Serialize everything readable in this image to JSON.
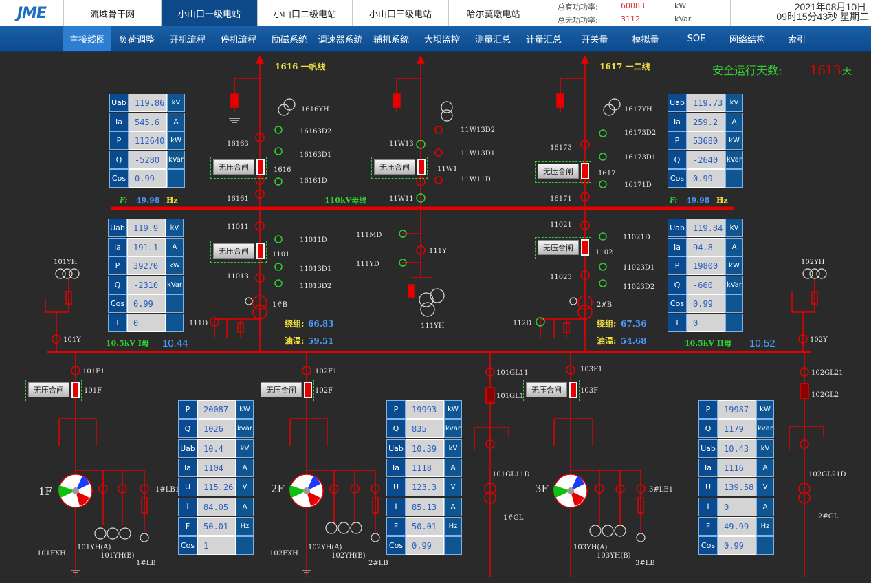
{
  "header": {
    "logo": "JME",
    "tabs": [
      "流域骨干网",
      "小山口一级电站",
      "小山口二级电站",
      "小山口三级电站",
      "哈尔莫墩电站"
    ],
    "active_tab": 1,
    "active_power_label": "总有功功率:",
    "active_power_value": "60083",
    "active_power_unit": "kW",
    "reactive_power_label": "总无功功率:",
    "reactive_power_value": "3112",
    "reactive_power_unit": "kVar",
    "date": "2021年08月10日",
    "time": "09时15分43秒 星期二"
  },
  "nav": {
    "items": [
      "主接线图",
      "负荷调整",
      "开机流程",
      "停机流程",
      "励磁系统",
      "调速器系统",
      "辅机系统",
      "大坝监控",
      "测量汇总",
      "计量汇总",
      "开关量",
      "模拟量",
      "SOE",
      "网络结构",
      "索引"
    ],
    "active": 0
  },
  "colors": {
    "line": "#e60000",
    "breaker_on": "#e60000",
    "label_yellow": "#f0e040",
    "label_green": "#32d032",
    "value_blue": "#4a9cff"
  },
  "safety": {
    "label": "安全运行天数:",
    "days": "1613",
    "unit": "天"
  },
  "lines": {
    "left_title": "1616 一帆线",
    "right_title": "1617 一二线",
    "bus_110": "110kV母线",
    "bus_10_left": "10.5kV I母",
    "bus_10_left_value": "10.44",
    "bus_10_right": "10.5kV II母",
    "bus_10_right_value": "10.52",
    "freq_label": "F:",
    "freq_left": "49.98",
    "freq_right": "49.98",
    "freq_unit": "Hz"
  },
  "noload_label": "无压合闸",
  "panels": {
    "line1616": {
      "rows": [
        [
          "Uab",
          "119.86",
          "kV"
        ],
        [
          "Ia",
          "545.6",
          "A"
        ],
        [
          "P",
          "112640",
          "kW"
        ],
        [
          "Q",
          "-5280",
          "kVar"
        ],
        [
          "Cos",
          "0.99",
          ""
        ]
      ]
    },
    "line1617": {
      "rows": [
        [
          "Uab",
          "119.73",
          "kV"
        ],
        [
          "Ia",
          "259.2",
          "A"
        ],
        [
          "P",
          "53680",
          "kW"
        ],
        [
          "Q",
          "-2640",
          "kVar"
        ],
        [
          "Cos",
          "0.99",
          ""
        ]
      ]
    },
    "tr1": {
      "rows": [
        [
          "Uab",
          "119.9",
          "kV"
        ],
        [
          "Ia",
          "191.1",
          "A"
        ],
        [
          "P",
          "39270",
          "kW"
        ],
        [
          "Q",
          "-2310",
          "kVar"
        ],
        [
          "Cos",
          "0.99",
          ""
        ],
        [
          "T",
          "0",
          ""
        ]
      ]
    },
    "tr2": {
      "rows": [
        [
          "Uab",
          "119.84",
          "kV"
        ],
        [
          "Ia",
          "94.8",
          "A"
        ],
        [
          "P",
          "19800",
          "kW"
        ],
        [
          "Q",
          "-660",
          "kVar"
        ],
        [
          "Cos",
          "0.99",
          ""
        ],
        [
          "T",
          "0",
          ""
        ]
      ]
    },
    "gen1": {
      "rows": [
        [
          "P",
          "20087",
          "kW"
        ],
        [
          "Q",
          "1026",
          "kvar"
        ],
        [
          "Uab",
          "10.4",
          "kV"
        ],
        [
          "Ia",
          "1104",
          "A"
        ],
        [
          "Ū",
          "115.26",
          "V"
        ],
        [
          "Ī",
          "84.05",
          "A"
        ],
        [
          "F",
          "50.01",
          "Hz"
        ],
        [
          "Cos",
          "1",
          ""
        ]
      ]
    },
    "gen2": {
      "rows": [
        [
          "P",
          "19993",
          "kW"
        ],
        [
          "Q",
          "835",
          "kvar"
        ],
        [
          "Uab",
          "10.39",
          "kV"
        ],
        [
          "Ia",
          "1118",
          "A"
        ],
        [
          "Ū",
          "123.3",
          "V"
        ],
        [
          "Ī",
          "85.13",
          "A"
        ],
        [
          "F",
          "50.01",
          "Hz"
        ],
        [
          "Cos",
          "0.99",
          ""
        ]
      ]
    },
    "gen3": {
      "rows": [
        [
          "P",
          "19987",
          "kW"
        ],
        [
          "Q",
          "1179",
          "kvar"
        ],
        [
          "Uab",
          "10.43",
          "kV"
        ],
        [
          "Ia",
          "1116",
          "A"
        ],
        [
          "Ū",
          "139.58",
          "V"
        ],
        [
          "Ī",
          "0",
          "A"
        ],
        [
          "F",
          "49.99",
          "Hz"
        ],
        [
          "Cos",
          "0.99",
          ""
        ]
      ]
    }
  },
  "transformers": {
    "t1": {
      "name": "1#B",
      "winding_label": "绕组:",
      "winding": "66.83",
      "oil_label": "油温:",
      "oil": "59.51"
    },
    "t2": {
      "name": "2#B",
      "winding_label": "绕组:",
      "winding": "67.36",
      "oil_label": "油温:",
      "oil": "54.68"
    }
  },
  "labels": {
    "l1616YH": "1616YH",
    "l16163D2": "16163D2",
    "l16163": "16163",
    "l16163D1": "16163D1",
    "l1616": "1616",
    "l16161D": "16161D",
    "l16161": "16161",
    "l11W13D2": "11W13D2",
    "l11W13": "11W13",
    "l11W13D1": "11W13D1",
    "l11W1": "11W1",
    "l11W11D": "11W11D",
    "l11W11": "11W11",
    "l1617YH": "1617YH",
    "l16173D2": "16173D2",
    "l16173": "16173",
    "l16173D1": "16173D1",
    "l1617": "1617",
    "l16171D": "16171D",
    "l16171": "16171",
    "l11011": "11011",
    "l11011D": "11011D",
    "l1101": "1101",
    "l11013D1": "11013D1",
    "l11013": "11013",
    "l11013D2": "11013D2",
    "l111MD": "111MD",
    "l111YD": "111YD",
    "l111Y": "111Y",
    "l111YH": "111YH",
    "l11021": "11021",
    "l11021D": "11021D",
    "l1102": "1102",
    "l11023D1": "11023D1",
    "l11023": "11023",
    "l11023D2": "11023D2",
    "l101YH": "101YH",
    "l101Y": "101Y",
    "l111D": "111D",
    "l112D": "112D",
    "l102YH": "102YH",
    "l102Y": "102Y",
    "l101F1": "101F1",
    "l101F": "101F",
    "l102F1": "102F1",
    "l102F": "102F",
    "l101GL11": "101GL11",
    "l101GL1": "101GL1",
    "l101GL11D": "101GL11D",
    "l1GL": "1#GL",
    "l103F1": "103F1",
    "l103F": "103F",
    "l102GL21": "102GL21",
    "l102GL2": "102GL2",
    "l102GL21D": "102GL21D",
    "l2GL": "2#GL",
    "l1F": "1F",
    "l2F": "2F",
    "l3F": "3F",
    "l1LB1": "1#LB1",
    "l3LB1": "3#LB1",
    "l101FXH": "101FXH",
    "l101YHA": "101YH(A)",
    "l101YHB": "101YH(B)",
    "l1LB": "1#LB",
    "l102FXH": "102FXH",
    "l102YHA": "102YH(A)",
    "l102YHB": "102YH(B)",
    "l2LB": "2#LB",
    "l103YHA": "103YH(A)",
    "l103YHB": "103YH(B)",
    "l3LB": "3#LB"
  }
}
